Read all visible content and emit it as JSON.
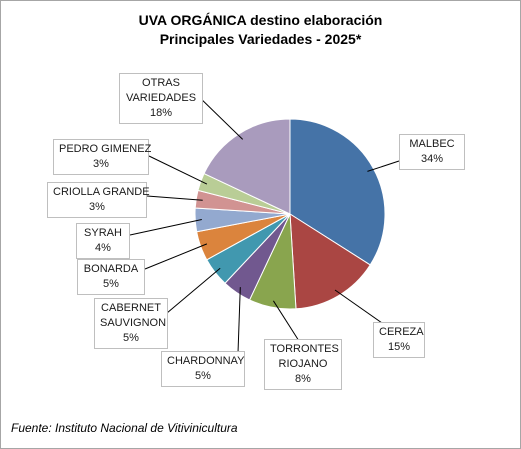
{
  "chart_data": {
    "type": "pie",
    "title": "UVA ORGÁNICA destino elaboración",
    "subtitle": "Principales Variedades - 2025*",
    "slices": [
      {
        "label": "MALBEC",
        "pct_label": "34%",
        "value": 34,
        "color": "#4573a7"
      },
      {
        "label": "CEREZA",
        "pct_label": "15%",
        "value": 15,
        "color": "#aa4643"
      },
      {
        "label": "TORRONTES RIOJANO",
        "label_lines": [
          "TORRONTES",
          "RIOJANO"
        ],
        "pct_label": "8%",
        "value": 8,
        "color": "#89a54e"
      },
      {
        "label": "CHARDONNAY",
        "pct_label": "5%",
        "value": 5,
        "color": "#71588f"
      },
      {
        "label": "CABERNET SAUVIGNON",
        "label_lines": [
          "CABERNET",
          "SAUVIGNON"
        ],
        "pct_label": "5%",
        "value": 5,
        "color": "#4198af"
      },
      {
        "label": "BONARDA",
        "pct_label": "5%",
        "value": 5,
        "color": "#db843d"
      },
      {
        "label": "SYRAH",
        "pct_label": "4%",
        "value": 4,
        "color": "#93a9cf"
      },
      {
        "label": "CRIOLLA GRANDE",
        "pct_label": "3%",
        "value": 3,
        "color": "#d19392"
      },
      {
        "label": "PEDRO GIMENEZ",
        "pct_label": "3%",
        "value": 3,
        "color": "#b9cd96"
      },
      {
        "label": "OTRAS VARIEDADES",
        "label_lines": [
          "OTRAS",
          "VARIEDADES"
        ],
        "pct_label": "18%",
        "value": 18,
        "color": "#a99bbd"
      }
    ],
    "legend": "none"
  },
  "source": "Fuente: Instituto Nacional de Vitivinicultura"
}
